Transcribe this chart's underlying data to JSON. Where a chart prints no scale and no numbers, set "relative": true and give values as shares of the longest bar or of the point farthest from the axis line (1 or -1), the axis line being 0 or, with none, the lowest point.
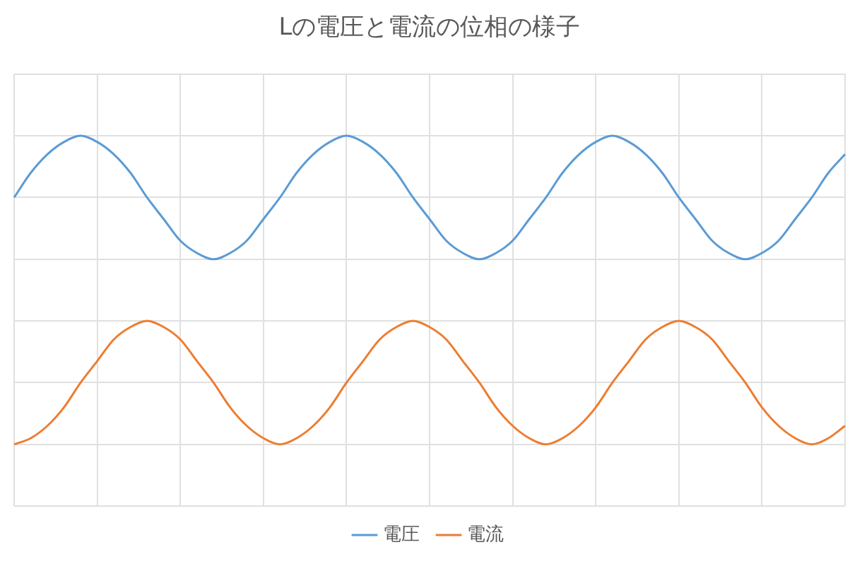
{
  "chart_data": {
    "type": "line",
    "title": "Lの電圧と電流の位相の様子",
    "relative": true,
    "grid": true,
    "legend": "bottom",
    "marker": "none",
    "tick_labels": false,
    "categories": [
      null,
      null,
      null,
      null,
      null,
      null,
      null,
      null,
      null,
      null,
      null,
      null,
      null,
      null,
      null,
      null,
      null,
      null,
      null,
      null,
      null,
      null,
      null,
      null,
      null,
      null,
      null,
      null,
      null,
      null,
      null,
      null,
      null,
      null,
      null,
      null,
      null,
      null,
      null,
      null,
      null,
      null,
      null,
      null,
      null,
      null,
      null,
      null,
      null,
      null,
      null
    ],
    "series": [
      {
        "name": "電圧",
        "color": "#5b9bd5",
        "values": [
          0.8,
          0.88,
          0.94,
          0.98,
          1,
          0.98,
          0.94,
          0.88,
          0.8,
          0.73,
          0.66,
          0.62,
          0.6,
          0.62,
          0.66,
          0.73,
          0.8,
          0.88,
          0.94,
          0.98,
          1,
          0.98,
          0.94,
          0.88,
          0.8,
          0.73,
          0.66,
          0.62,
          0.6,
          0.62,
          0.66,
          0.73,
          0.8,
          0.88,
          0.94,
          0.98,
          1,
          0.98,
          0.94,
          0.88,
          0.8,
          0.73,
          0.66,
          0.62,
          0.6,
          0.62,
          0.66,
          0.73,
          0.8,
          0.88,
          0.94
        ]
      },
      {
        "name": "電流",
        "color": "#ed7d31",
        "values": [
          0,
          0.02,
          0.06,
          0.12,
          0.2,
          0.27,
          0.34,
          0.38,
          0.4,
          0.38,
          0.34,
          0.27,
          0.2,
          0.12,
          0.06,
          0.02,
          0,
          0.02,
          0.06,
          0.12,
          0.2,
          0.27,
          0.34,
          0.38,
          0.4,
          0.38,
          0.34,
          0.27,
          0.2,
          0.12,
          0.06,
          0.02,
          0,
          0.02,
          0.06,
          0.12,
          0.2,
          0.27,
          0.34,
          0.38,
          0.4,
          0.38,
          0.34,
          0.27,
          0.2,
          0.12,
          0.06,
          0.02,
          0,
          0.02,
          0.06
        ]
      }
    ]
  }
}
